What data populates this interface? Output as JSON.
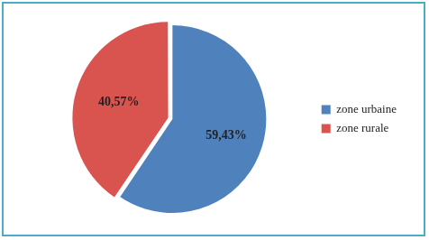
{
  "chart_data": {
    "type": "pie",
    "categories": [
      "zone urbaine",
      "zone rurale"
    ],
    "values": [
      59.43,
      40.57
    ],
    "value_labels": [
      "59,43%",
      "40,57%"
    ],
    "colors": [
      "#4f81bd",
      "#d9534f"
    ],
    "data_labels": true,
    "legend": "right"
  }
}
